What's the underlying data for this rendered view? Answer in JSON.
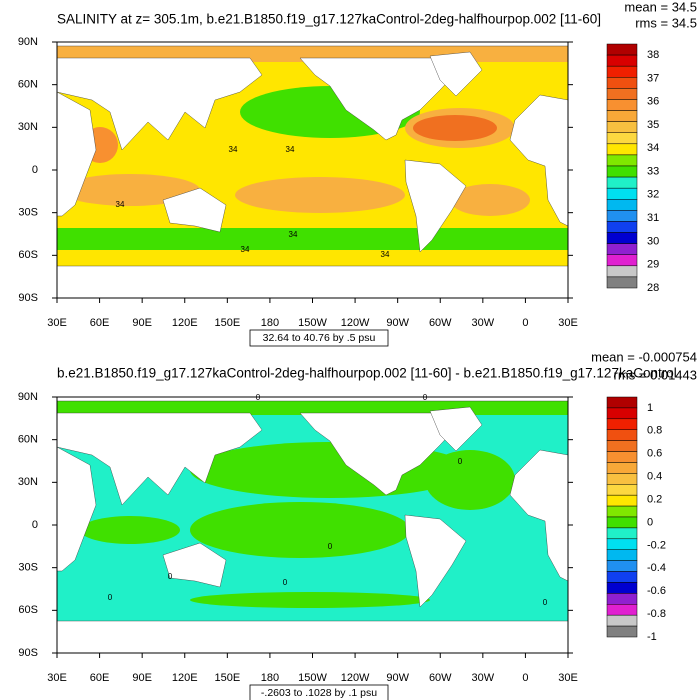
{
  "panels": [
    {
      "title": "SALINITY at z= 305.1m, b.e21.B1850.f19_g17.127kaControl-2deg-halfhourpop.002 [11-60]",
      "mean": "mean = 34.5",
      "rms": "rms = 34.5",
      "lat_labels": [
        "90N",
        "60N",
        "30N",
        "0",
        "30S",
        "60S",
        "90S"
      ],
      "lon_labels": [
        "30E",
        "60E",
        "90E",
        "120E",
        "150E",
        "180",
        "150W",
        "120W",
        "90W",
        "60W",
        "30W",
        "0",
        "30E"
      ],
      "colorbar_labels": [
        "38",
        "37",
        "36",
        "35",
        "34",
        "33",
        "32",
        "31",
        "30",
        "29",
        "28"
      ],
      "contour_labels": [
        "34",
        "34",
        "34",
        "34",
        "34",
        "34"
      ],
      "info": "32.64 to 40.76 by .5 psu"
    },
    {
      "title": "b.e21.B1850.f19_g17.127kaControl-2deg-halfhourpop.002 [11-60] - b.e21.B1850.f19_g17.127kaControl",
      "mean": "mean = -0.000754",
      "rms": "rms = 0.01443",
      "lat_labels": [
        "90N",
        "60N",
        "30N",
        "0",
        "30S",
        "60S",
        "90S"
      ],
      "lon_labels": [
        "30E",
        "60E",
        "90E",
        "120E",
        "150E",
        "180",
        "150W",
        "120W",
        "90W",
        "60W",
        "30W",
        "0",
        "30E"
      ],
      "colorbar_labels": [
        "1",
        "0.8",
        "0.6",
        "0.4",
        "0.2",
        "0",
        "-0.2",
        "-0.4",
        "-0.6",
        "-0.8",
        "-1"
      ],
      "contour_labels": [
        "0",
        "0",
        "0",
        "0",
        "0",
        "0",
        "0",
        "0"
      ],
      "info": "-.2603 to .1028 by .1 psu"
    }
  ]
}
